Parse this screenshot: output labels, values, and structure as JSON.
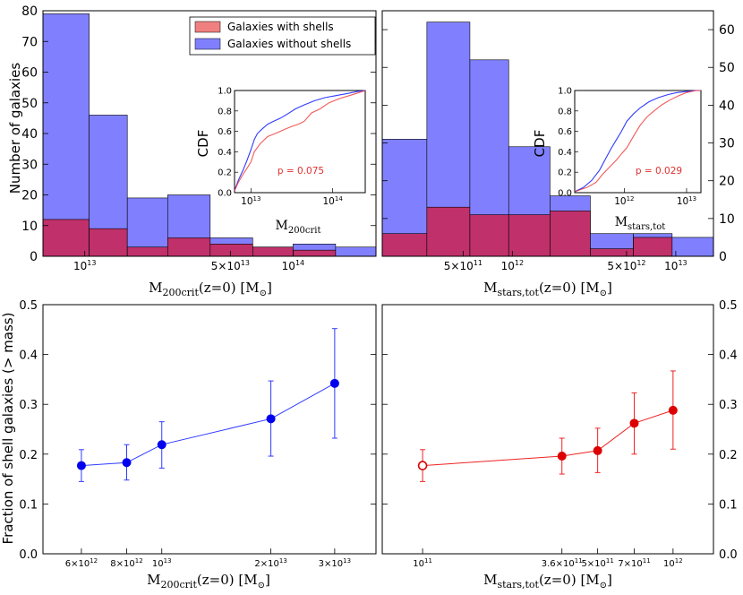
{
  "colors": {
    "with_shells": "#f08080",
    "without_shells": "#8080ff",
    "overlap": "#c0306a",
    "blue_line": "#2f3bff",
    "blue_point": "#0000ee",
    "red_line": "#ee2222",
    "red_point": "#dd0000"
  },
  "legend": {
    "with_shells": "Galaxies with shells",
    "without_shells": "Galaxies without shells"
  },
  "axes": {
    "hist_left_ylabel": "Number of galaxies",
    "hist_left_xlabel_main": "M",
    "hist_left_xlabel_sub": "200crit",
    "hist_left_xlabel_tail": "(z=0)   [M",
    "hist_right_xlabel_main": "M",
    "hist_right_xlabel_sub": "stars,tot",
    "hist_right_xlabel_tail": "(z=0)   [M",
    "frac_ylabel": "Fraction of shell galaxies (> mass)",
    "frac_left_xlabel_main": "M",
    "frac_left_xlabel_sub": "200crit",
    "frac_left_xlabel_tail": "(z=0)  [M",
    "frac_right_xlabel_main": "M",
    "frac_right_xlabel_sub": "stars,tot",
    "frac_right_xlabel_tail": "(z=0)  [M",
    "sun_symbol": "⊙",
    "close_bracket": "]"
  },
  "insets": {
    "left": {
      "ylabel": "CDF",
      "xlabel_main": "M",
      "xlabel_sub": "200crit",
      "pvalue": "p = 0.075"
    },
    "right": {
      "ylabel": "CDF",
      "xlabel_main": "M",
      "xlabel_sub": "stars,tot",
      "pvalue": "p = 0.029"
    }
  },
  "chart_data": [
    {
      "id": "hist_left",
      "type": "bar",
      "title": "",
      "xlabel": "M200crit(z=0) [M⊙]",
      "ylabel": "Number of galaxies",
      "ylim": [
        0,
        80
      ],
      "yticks": [
        "0",
        "10",
        "20",
        "30",
        "40",
        "50",
        "60",
        "70",
        "80"
      ],
      "xticks": [
        "10",
        "13",
        "5×10",
        "13",
        "10",
        "14"
      ],
      "bin_edges": [
        6300000000000.0,
        10500000000000.0,
        16000000000000.0,
        25000000000000.0,
        40000000000000.0,
        64000000000000.0,
        100000000000000.0,
        160000000000000.0,
        250000000000000.0
      ],
      "series": [
        {
          "name": "Galaxies without shells",
          "values": [
            79,
            46,
            19,
            20,
            6,
            3,
            4,
            3
          ]
        },
        {
          "name": "Galaxies with shells",
          "values": [
            12,
            9,
            3,
            6,
            4,
            3,
            2,
            0
          ]
        }
      ]
    },
    {
      "id": "hist_right",
      "type": "bar",
      "title": "",
      "xlabel": "Mstars,tot(z=0) [M⊙]",
      "ylabel": "",
      "ylim": [
        0,
        65
      ],
      "yticks": [
        "0",
        "10",
        "20",
        "30",
        "40",
        "50",
        "60"
      ],
      "xticks": [
        "5×10",
        "11",
        "10",
        "12",
        "5×10",
        "12",
        "10",
        "13"
      ],
      "bin_edges": [
        160000000000.0,
        300000000000.0,
        550000000000.0,
        950000000000.0,
        1700000000000.0,
        3000000000000.0,
        5500000000000.0,
        9500000000000.0,
        17000000000000.0
      ],
      "series": [
        {
          "name": "Galaxies without shells",
          "values": [
            31,
            62,
            52,
            29,
            16,
            6,
            6,
            5
          ]
        },
        {
          "name": "Galaxies with shells",
          "values": [
            6,
            13,
            11,
            11,
            12,
            2,
            5,
            0
          ]
        }
      ]
    },
    {
      "id": "cdf_left",
      "type": "line",
      "title": "",
      "xlabel": "M200crit",
      "ylabel": "CDF",
      "ylim": [
        0,
        1
      ],
      "yticks": [
        "0.0",
        "0.2",
        "0.4",
        "0.6",
        "0.8",
        "1.0"
      ],
      "xticks": [
        "10",
        "13",
        "10",
        "14"
      ],
      "annotation": "p = 0.075",
      "series": [
        {
          "name": "Galaxies without shells",
          "x": [
            6300000000000.0,
            7000000000000.0,
            8000000000000.0,
            9000000000000.0,
            10000000000000.0,
            11000000000000.0,
            12000000000000.0,
            14000000000000.0,
            16000000000000.0,
            19000000000000.0,
            23000000000000.0,
            28000000000000.0,
            35000000000000.0,
            45000000000000.0,
            60000000000000.0,
            80000000000000.0,
            110000000000000.0,
            150000000000000.0,
            200000000000000.0,
            250000000000000.0
          ],
          "y": [
            0.02,
            0.12,
            0.22,
            0.32,
            0.42,
            0.52,
            0.58,
            0.63,
            0.67,
            0.7,
            0.73,
            0.77,
            0.82,
            0.86,
            0.9,
            0.93,
            0.95,
            0.97,
            0.99,
            1.0
          ]
        },
        {
          "name": "Galaxies with shells",
          "x": [
            6300000000000.0,
            7000000000000.0,
            8000000000000.0,
            9000000000000.0,
            10000000000000.0,
            11000000000000.0,
            13000000000000.0,
            16000000000000.0,
            20000000000000.0,
            26000000000000.0,
            32000000000000.0,
            38000000000000.0,
            45000000000000.0,
            55000000000000.0,
            70000000000000.0,
            90000000000000.0,
            120000000000000.0,
            160000000000000.0,
            210000000000000.0,
            250000000000000.0
          ],
          "y": [
            0.02,
            0.1,
            0.18,
            0.24,
            0.3,
            0.4,
            0.48,
            0.55,
            0.58,
            0.62,
            0.65,
            0.67,
            0.7,
            0.78,
            0.82,
            0.88,
            0.92,
            0.95,
            0.98,
            1.0
          ]
        }
      ]
    },
    {
      "id": "cdf_right",
      "type": "line",
      "title": "",
      "xlabel": "Mstars,tot",
      "ylabel": "CDF",
      "ylim": [
        0,
        1
      ],
      "yticks": [
        "0.0",
        "0.2",
        "0.4",
        "0.6",
        "0.8",
        "1.0"
      ],
      "xticks": [
        "10",
        "12",
        "10",
        "13"
      ],
      "annotation": "p = 0.029",
      "series": [
        {
          "name": "Galaxies without shells",
          "x": [
            160000000000.0,
            220000000000.0,
            300000000000.0,
            400000000000.0,
            500000000000.0,
            600000000000.0,
            750000000000.0,
            900000000000.0,
            1100000000000.0,
            1400000000000.0,
            1800000000000.0,
            2500000000000.0,
            3500000000000.0,
            5000000000000.0,
            7000000000000.0,
            10000000000000.0,
            14000000000000.0,
            17000000000000.0
          ],
          "y": [
            0.01,
            0.05,
            0.12,
            0.22,
            0.33,
            0.42,
            0.52,
            0.6,
            0.7,
            0.77,
            0.83,
            0.89,
            0.93,
            0.96,
            0.98,
            0.99,
            1.0,
            1.0
          ]
        },
        {
          "name": "Galaxies with shells",
          "x": [
            160000000000.0,
            250000000000.0,
            350000000000.0,
            450000000000.0,
            600000000000.0,
            750000000000.0,
            900000000000.0,
            1100000000000.0,
            1400000000000.0,
            1800000000000.0,
            2300000000000.0,
            3000000000000.0,
            4000000000000.0,
            5500000000000.0,
            7500000000000.0,
            10000000000000.0,
            14000000000000.0,
            17000000000000.0
          ],
          "y": [
            0.01,
            0.05,
            0.1,
            0.18,
            0.26,
            0.32,
            0.38,
            0.44,
            0.55,
            0.66,
            0.74,
            0.8,
            0.86,
            0.91,
            0.95,
            0.98,
            1.0,
            1.0
          ]
        }
      ]
    },
    {
      "id": "frac_left",
      "type": "scatter",
      "title": "",
      "xlabel": "M200crit(z=0) [M⊙]",
      "ylabel": "Fraction of shell galaxies (> mass)",
      "ylim": [
        0,
        0.5
      ],
      "yticks": [
        "0.0",
        "0.1",
        "0.2",
        "0.3",
        "0.4",
        "0.5"
      ],
      "xticks": [
        "6×10",
        "12",
        "8×10",
        "12",
        "10",
        "13",
        "2×10",
        "13",
        "3×10",
        "13"
      ],
      "x": [
        6000000000000.0,
        8000000000000.0,
        10000000000000.0,
        20000000000000.0,
        30000000000000.0
      ],
      "y": [
        0.177,
        0.183,
        0.219,
        0.271,
        0.342
      ],
      "yerr_low": [
        0.145,
        0.148,
        0.172,
        0.196,
        0.232
      ],
      "yerr_high": [
        0.209,
        0.219,
        0.265,
        0.347,
        0.452
      ]
    },
    {
      "id": "frac_right",
      "type": "scatter",
      "title": "",
      "xlabel": "Mstars,tot(z=0) [M⊙]",
      "ylabel": "",
      "ylim": [
        0,
        0.5
      ],
      "yticks": [
        "0.0",
        "0.1",
        "0.2",
        "0.3",
        "0.4",
        "0.5"
      ],
      "xticks": [
        "10",
        "11",
        "3.6×10",
        "11",
        "5×10",
        "11",
        "7×10",
        "11",
        "10",
        "12"
      ],
      "x": [
        100000000000.0,
        360000000000.0,
        500000000000.0,
        700000000000.0,
        1000000000000.0
      ],
      "y": [
        0.177,
        0.196,
        0.207,
        0.262,
        0.288
      ],
      "yerr_low": [
        0.145,
        0.16,
        0.163,
        0.2,
        0.21
      ],
      "yerr_high": [
        0.209,
        0.232,
        0.252,
        0.323,
        0.367
      ],
      "first_point_open": true
    }
  ]
}
